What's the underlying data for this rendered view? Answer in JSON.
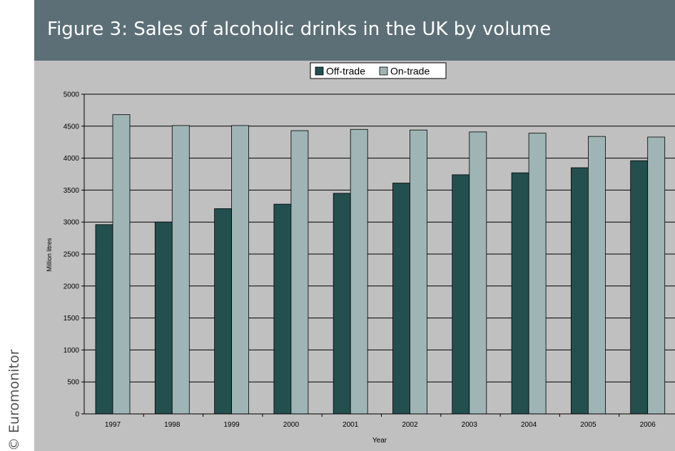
{
  "figure": {
    "title": "Figure 3: Sales of alcoholic drinks in the UK by volume",
    "credit": "© Euromonitor"
  },
  "colors": {
    "banner": "#5c6f77",
    "plot_background": "#c0c0c0",
    "off_trade": "#234f4f",
    "on_trade": "#9fb4b4"
  },
  "chart_data": {
    "type": "bar",
    "title": "",
    "xlabel": "Year",
    "ylabel": "Million litres",
    "categories": [
      "1997",
      "1998",
      "1999",
      "2000",
      "2001",
      "2002",
      "2003",
      "2004",
      "2005",
      "2006"
    ],
    "series": [
      {
        "name": "Off-trade",
        "values": [
          2960,
          3000,
          3210,
          3280,
          3450,
          3610,
          3740,
          3770,
          3850,
          3960
        ]
      },
      {
        "name": "On-trade",
        "values": [
          4680,
          4510,
          4510,
          4430,
          4450,
          4440,
          4410,
          4390,
          4340,
          4330
        ]
      }
    ],
    "ylim": [
      0,
      5000
    ],
    "yticks": [
      0,
      500,
      1000,
      1500,
      2000,
      2500,
      3000,
      3500,
      4000,
      4500,
      5000
    ],
    "grid": true,
    "legend_position": "top-center"
  }
}
